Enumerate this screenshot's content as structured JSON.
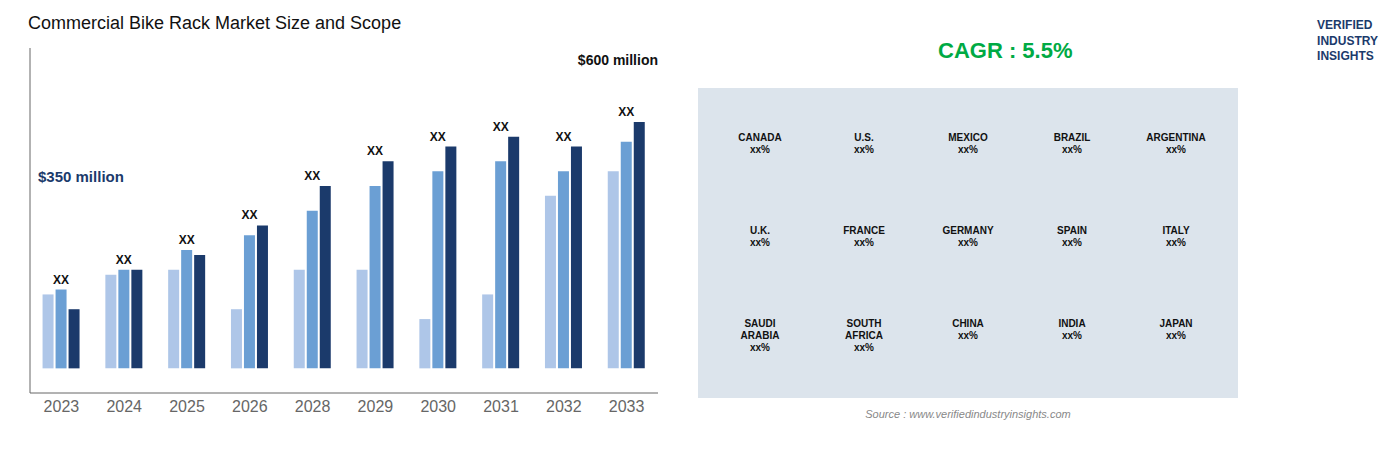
{
  "chart_data": {
    "type": "bar",
    "title": "Commercial Bike Rack Market Size and Scope",
    "categories": [
      "2023",
      "2024",
      "2025",
      "2026",
      "2028",
      "2029",
      "2030",
      "2031",
      "2032",
      "2033"
    ],
    "series": [
      {
        "color": "#aec6e8",
        "values": [
          0.3,
          0.38,
          0.4,
          0.24,
          0.4,
          0.4,
          0.2,
          0.3,
          0.7,
          0.8
        ]
      },
      {
        "color": "#6b9fd4",
        "values": [
          0.32,
          0.4,
          0.48,
          0.54,
          0.64,
          0.74,
          0.8,
          0.84,
          0.8,
          0.92
        ]
      },
      {
        "color": "#1b3a6b",
        "values": [
          0.24,
          0.4,
          0.46,
          0.58,
          0.74,
          0.84,
          0.9,
          0.94,
          0.9,
          1.0
        ]
      }
    ],
    "group_labels": [
      "XX",
      "XX",
      "XX",
      "XX",
      "XX",
      "XX",
      "XX",
      "XX",
      "XX",
      "XX"
    ],
    "ylim": [
      -0.1,
      1.3
    ],
    "tick_labels": "x",
    "grid": false,
    "annotations": [
      "$350 million",
      "$600 million",
      "CAGR : 5.5%",
      "Source : www.verifiedindustryinsights.com",
      "VERIFIED\nINDUSTRY\nINSIGHTS"
    ],
    "map_labels": [
      "CANADA\nxx%",
      "U.S.\nxx%",
      "MEXICO\nxx%",
      "BRAZIL\nxx%",
      "ARGENTINA\nxx%",
      "U.K.\nxx%",
      "FRANCE\nxx%",
      "GERMANY\nxx%",
      "SPAIN\nxx%",
      "ITALY\nxx%",
      "SAUDI\nARABIA\nxx%",
      "SOUTH\nAFRICA\nxx%",
      "CHINA\nxx%",
      "INDIA\nxx%",
      "JAPAN\nxx%"
    ]
  }
}
